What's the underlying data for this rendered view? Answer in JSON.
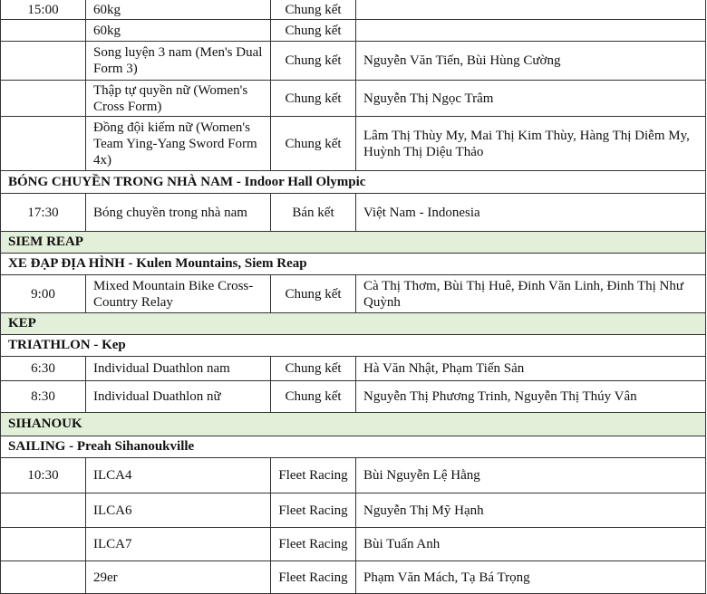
{
  "colors": {
    "region_bg": "#e2efd9",
    "border": "#333333"
  },
  "rows": [
    {
      "type": "event",
      "time": "15:00",
      "event": "60kg",
      "stage": "Chung kết",
      "athletes": ""
    },
    {
      "type": "event",
      "time": "",
      "event": "60kg",
      "stage": "Chung kết",
      "athletes": ""
    },
    {
      "type": "event",
      "time": "",
      "event": "Song luyện 3 nam (Men's Dual Form 3)",
      "stage": "Chung kết",
      "athletes": "Nguyễn Văn Tiến, Bùi Hùng Cường"
    },
    {
      "type": "event",
      "time": "",
      "event": "Thập tự quyền nữ (Women's Cross Form)",
      "stage": "Chung kết",
      "athletes": "Nguyễn Thị Ngọc Trâm"
    },
    {
      "type": "event",
      "time": "",
      "event": "Đồng đội kiếm nữ (Women's Team Ying-Yang Sword Form 4x)",
      "stage": "Chung kết",
      "athletes": "Lâm Thị Thùy My, Mai Thị Kim Thùy, Hàng Thị Diễm My, Huỳnh Thị Diệu Thảo"
    },
    {
      "type": "sport",
      "label": "BÓNG CHUYỀN TRONG NHÀ NAM - Indoor Hall Olympic"
    },
    {
      "type": "event",
      "time": "17:30",
      "event": "Bóng chuyền trong nhà nam",
      "stage": "Bán kết",
      "athletes": "Việt Nam - Indonesia"
    },
    {
      "type": "region",
      "label": "SIEM REAP"
    },
    {
      "type": "sport",
      "label": "XE ĐẠP ĐỊA HÌNH - Kulen Mountains, Siem Reap"
    },
    {
      "type": "event",
      "time": "9:00",
      "event": "Mixed Mountain Bike Cross-Country Relay",
      "stage": "Chung kết",
      "athletes": "Cà Thị Thơm, Bùi Thị Huê, Đinh Văn Linh, Đinh Thị Như Quỳnh"
    },
    {
      "type": "region",
      "label": "KEP"
    },
    {
      "type": "sport",
      "label": "TRIATHLON - Kep"
    },
    {
      "type": "event",
      "time": "6:30",
      "event": "Individual Duathlon nam",
      "stage": "Chung kết",
      "athletes": "Hà Văn Nhật, Phạm Tiến Sản"
    },
    {
      "type": "event",
      "time": "8:30",
      "event": "Individual Duathlon nữ",
      "stage": "Chung kết",
      "athletes": "Nguyễn Thị Phương Trinh, Nguyễn Thị Thúy Vân"
    },
    {
      "type": "region",
      "label": "SIHANOUK"
    },
    {
      "type": "sport",
      "label": "SAILING - Preah Sihanoukville"
    },
    {
      "type": "event",
      "time": "10:30",
      "event": "ILCA4",
      "stage": "Fleet Racing",
      "athletes": "Bùi Nguyễn Lệ Hằng"
    },
    {
      "type": "event",
      "time": "",
      "event": "ILCA6",
      "stage": "Fleet Racing",
      "athletes": "Nguyễn Thị Mỹ Hạnh"
    },
    {
      "type": "event",
      "time": "",
      "event": "ILCA7",
      "stage": "Fleet Racing",
      "athletes": "Bùi Tuấn Anh"
    },
    {
      "type": "event",
      "time": "",
      "event": "29er",
      "stage": "Fleet Racing",
      "athletes": "Phạm Văn Mách, Tạ Bá Trọng"
    }
  ]
}
